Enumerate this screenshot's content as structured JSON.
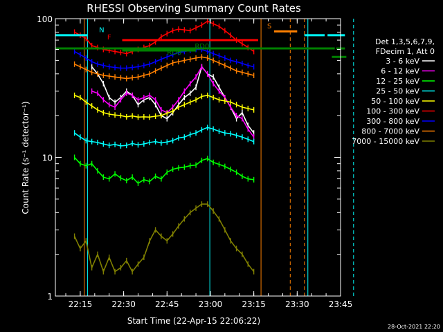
{
  "chart_data": {
    "type": "line",
    "title": "RHESSI Observing Summary Count Rates",
    "xlabel": "Start Time (22-Apr-15 22:06:22)",
    "ylabel": "Count Rate (s⁻¹ detector⁻¹)",
    "yscale": "log",
    "ylim": [
      1,
      100
    ],
    "xlim_min": [
      6.4,
      105
    ],
    "xticks": [
      {
        "min": 15,
        "label": "22:15"
      },
      {
        "min": 30,
        "label": "22:30"
      },
      {
        "min": 45,
        "label": "22:45"
      },
      {
        "min": 60,
        "label": "23:00"
      },
      {
        "min": 75,
        "label": "23:15"
      },
      {
        "min": 90,
        "label": "23:30"
      },
      {
        "min": 105,
        "label": "23:45"
      }
    ],
    "yticks": [
      {
        "val": 1,
        "label": "1"
      },
      {
        "val": 10,
        "label": "10"
      },
      {
        "val": 100,
        "label": "100"
      }
    ],
    "legend_header": [
      "Det 1,3,5,6,7,9,",
      "FDecim 1, Att 0"
    ],
    "legend_position": "right",
    "series": [
      {
        "name": "3 - 6 keV",
        "color": "#ffffff",
        "x": [
          19,
          21,
          23,
          25,
          27,
          29,
          31,
          33,
          35,
          37,
          39,
          41,
          43,
          45,
          47,
          49,
          51,
          53,
          55,
          57,
          59,
          61,
          63,
          65,
          67,
          69,
          71,
          73,
          75
        ],
        "y": [
          45,
          40,
          34,
          27,
          25,
          27,
          30,
          28,
          24,
          26,
          27,
          24,
          20,
          19,
          21,
          24,
          27,
          29,
          32,
          45,
          40,
          38,
          32,
          27,
          23,
          19,
          21,
          17,
          15
        ]
      },
      {
        "name": "6 - 12 keV",
        "color": "#ff00ff",
        "x": [
          19,
          21,
          23,
          25,
          27,
          29,
          31,
          33,
          35,
          37,
          39,
          41,
          43,
          45,
          47,
          49,
          51,
          53,
          55,
          57,
          59,
          61,
          63,
          65,
          67,
          69,
          71,
          73,
          75
        ],
        "y": [
          30,
          29,
          26,
          24,
          23,
          26,
          29,
          28,
          26,
          27,
          28,
          26,
          22,
          21,
          23,
          26,
          30,
          34,
          38,
          45,
          40,
          34,
          30,
          27,
          23,
          20,
          19,
          16,
          14
        ]
      },
      {
        "name": "12 - 25 keV",
        "color": "#00ff00",
        "x": [
          13,
          15,
          17,
          19,
          21,
          23,
          25,
          27,
          29,
          31,
          33,
          35,
          37,
          39,
          41,
          43,
          45,
          47,
          49,
          51,
          53,
          55,
          57,
          59,
          61,
          63,
          65,
          67,
          69,
          71,
          73,
          75
        ],
        "y": [
          10,
          9,
          8.7,
          9,
          8,
          7.2,
          7,
          7.6,
          7.1,
          6.8,
          7.2,
          6.5,
          6.9,
          6.7,
          7.3,
          7.0,
          7.8,
          8.2,
          8.4,
          8.5,
          8.7,
          8.8,
          9.5,
          9.8,
          9.2,
          8.9,
          8.6,
          8.2,
          7.8,
          7.3,
          7.0,
          6.9
        ]
      },
      {
        "name": "25 - 50 keV",
        "color": "#00ffff",
        "x": [
          13,
          15,
          17,
          19,
          21,
          23,
          25,
          27,
          29,
          31,
          33,
          35,
          37,
          39,
          41,
          43,
          45,
          47,
          49,
          51,
          53,
          55,
          57,
          59,
          61,
          63,
          65,
          67,
          69,
          71,
          73,
          75
        ],
        "y": [
          15,
          14,
          13.2,
          13,
          12.8,
          12.5,
          12.2,
          12.4,
          12.1,
          12.2,
          12.6,
          12.3,
          12.5,
          12.8,
          13,
          12.7,
          12.9,
          13.2,
          13.8,
          14,
          14.6,
          15,
          15.8,
          16.4,
          16,
          15.4,
          15,
          14.8,
          14.4,
          14,
          13.5,
          13
        ]
      },
      {
        "name": "50 - 100 keV",
        "color": "#ffff00",
        "x": [
          13,
          15,
          17,
          19,
          21,
          23,
          25,
          27,
          29,
          31,
          33,
          35,
          37,
          39,
          41,
          43,
          45,
          47,
          49,
          51,
          53,
          55,
          57,
          59,
          61,
          63,
          65,
          67,
          69,
          71,
          73,
          75
        ],
        "y": [
          28,
          27,
          25,
          23.5,
          22,
          21,
          20.5,
          20.2,
          20,
          19.6,
          19.9,
          19.5,
          19.6,
          19.5,
          19.8,
          20,
          20.8,
          21.5,
          23,
          24,
          25,
          26,
          27.5,
          28,
          27,
          26,
          25.5,
          25,
          24,
          23,
          22.5,
          22
        ]
      },
      {
        "name": "100 - 300 keV",
        "color": "#ff0000",
        "x": [
          13,
          15,
          17,
          19,
          21,
          23,
          25,
          27,
          29,
          31,
          33,
          35,
          37,
          39,
          41,
          43,
          45,
          47,
          49,
          51,
          53,
          55,
          57,
          59,
          61,
          63,
          65,
          67,
          69,
          71,
          73,
          75
        ],
        "y": [
          80,
          76,
          72,
          64,
          62,
          60,
          59,
          58,
          57,
          56,
          58,
          60,
          62,
          64,
          68,
          74,
          78,
          82,
          84,
          83,
          82,
          86,
          90,
          96,
          92,
          88,
          82,
          76,
          70,
          66,
          62,
          58
        ]
      },
      {
        "name": "300 - 800 keV",
        "color": "#0000ff",
        "x": [
          13,
          15,
          17,
          19,
          21,
          23,
          25,
          27,
          29,
          31,
          33,
          35,
          37,
          39,
          41,
          43,
          45,
          47,
          49,
          51,
          53,
          55,
          57,
          59,
          61,
          63,
          65,
          67,
          69,
          71,
          73,
          75
        ],
        "y": [
          58,
          55,
          52,
          49,
          47,
          46,
          45,
          44.5,
          44,
          44,
          44.5,
          45,
          46,
          47,
          49,
          51,
          53,
          55,
          57,
          58,
          59,
          60,
          60,
          58,
          56,
          54,
          52,
          50,
          49,
          47.5,
          46,
          45
        ]
      },
      {
        "name": "800 - 7000 keV",
        "color": "#ff8000",
        "x": [
          13,
          15,
          17,
          19,
          21,
          23,
          25,
          27,
          29,
          31,
          33,
          35,
          37,
          39,
          41,
          43,
          45,
          47,
          49,
          51,
          53,
          55,
          57,
          59,
          61,
          63,
          65,
          67,
          69,
          71,
          73,
          75
        ],
        "y": [
          47,
          45,
          43,
          41,
          40,
          39,
          38.5,
          38,
          37.5,
          37,
          37.5,
          38,
          39,
          40,
          42,
          44,
          46,
          48,
          49,
          50,
          51,
          52,
          53,
          52,
          50,
          48,
          46,
          44,
          42,
          41,
          40,
          39
        ]
      },
      {
        "name": "7000 - 15000 keV",
        "color": "#808000",
        "x": [
          13,
          15,
          17,
          19,
          21,
          23,
          25,
          27,
          29,
          31,
          33,
          35,
          37,
          39,
          41,
          43,
          45,
          47,
          49,
          51,
          53,
          55,
          57,
          59,
          61,
          63,
          65,
          67,
          69,
          71,
          73,
          75
        ],
        "y": [
          2.7,
          2.2,
          2.5,
          1.6,
          2.0,
          1.5,
          1.9,
          1.5,
          1.6,
          1.8,
          1.5,
          1.7,
          1.9,
          2.5,
          3.0,
          2.7,
          2.5,
          2.8,
          3.2,
          3.6,
          4.0,
          4.3,
          4.6,
          4.6,
          4.1,
          3.6,
          3.0,
          2.5,
          2.2,
          2.0,
          1.7,
          1.5
        ]
      }
    ],
    "annotations": [
      {
        "text": "N",
        "x": 22.4,
        "y": 80,
        "color": "#00ffff"
      },
      {
        "text": "F",
        "x": 25.0,
        "y": 71,
        "color": "#ff0000"
      },
      {
        "text": "RD6",
        "x": 47.5,
        "y": 55,
        "color": "#008000"
      },
      {
        "text": "RD0",
        "x": 57.1,
        "y": 61,
        "color": "#008000"
      },
      {
        "text": "S",
        "x": 80.4,
        "y": 85,
        "color": "#ff8000"
      }
    ],
    "flag_bars": [
      {
        "name": "saa",
        "color": "#00ffff",
        "y": 76,
        "ranges": [
          [
            6.4,
            17.5
          ],
          [
            92.5,
            99.5
          ],
          [
            100.5,
            106.5
          ]
        ]
      },
      {
        "name": "flare",
        "color": "#ff0000",
        "y": 70,
        "ranges": [
          [
            29.5,
            76.5
          ]
        ]
      },
      {
        "name": "decim-rd0",
        "color": "#008000",
        "y": 61,
        "ranges": [
          [
            6.4,
            103
          ],
          [
            103.5,
            106.5
          ]
        ]
      },
      {
        "name": "decim-rd6",
        "color": "#008000",
        "y": 59,
        "ranges": [
          [
            29.5,
            55
          ]
        ]
      },
      {
        "name": "saa-s",
        "color": "#ff8000",
        "y": 81,
        "ranges": [
          [
            82,
            90
          ]
        ]
      },
      {
        "name": "night",
        "color": "#008000",
        "y": 53,
        "ranges": [
          [
            102,
            107
          ]
        ]
      }
    ],
    "vertical_markers": [
      {
        "x": 16.4,
        "color": "#ff8000",
        "style": "solid"
      },
      {
        "x": 17.5,
        "color": "#00ffff",
        "style": "solid"
      },
      {
        "x": 59.8,
        "color": "#00ffff",
        "style": "solid"
      },
      {
        "x": 77.5,
        "color": "#ff8000",
        "style": "solid"
      },
      {
        "x": 87.6,
        "color": "#ff8000",
        "style": "dashed"
      },
      {
        "x": 92.5,
        "color": "#ff8000",
        "style": "dashed"
      },
      {
        "x": 93.7,
        "color": "#00ffff",
        "style": "solid"
      },
      {
        "x": 109.5,
        "color": "#00ffff",
        "style": "dashed"
      }
    ],
    "grid": false
  },
  "footer": {
    "stamp": "28-Oct-2021 22:20"
  }
}
